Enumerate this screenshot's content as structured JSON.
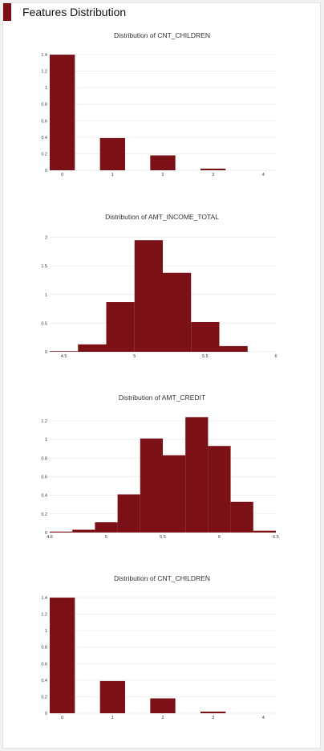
{
  "header": {
    "title": "Features Distribution",
    "accent_color": "#7b1116"
  },
  "bar_color": "#7b1116",
  "chart_data": [
    {
      "type": "bar",
      "title": "Distribution of CNT_CHILDREN",
      "x_ticks": [
        "0",
        "1",
        "2",
        "3",
        "4"
      ],
      "y_ticks": [
        "0",
        "0.2",
        "0.4",
        "0.6",
        "0.8",
        "1",
        "1.2",
        "1.4"
      ],
      "xlim": [
        -0.25,
        4.25
      ],
      "ylim": [
        0,
        1.42
      ],
      "bar_width": 0.5,
      "x": [
        0,
        1,
        2,
        3
      ],
      "values": [
        1.4,
        0.39,
        0.18,
        0.02
      ],
      "grid": true
    },
    {
      "type": "bar",
      "title": "Distribution of AMT_INCOME_TOTAL",
      "x_ticks": [
        "4.5",
        "5",
        "5.5",
        "6"
      ],
      "x_tick_values": [
        4.5,
        5,
        5.5,
        6
      ],
      "y_ticks": [
        "0",
        "0.5",
        "1",
        "1.5",
        "2"
      ],
      "y_tick_values": [
        0,
        0.5,
        1,
        1.5,
        2
      ],
      "xlim": [
        4.4,
        6.0
      ],
      "ylim": [
        0,
        2.05
      ],
      "bar_width": 0.2,
      "x": [
        4.5,
        4.7,
        4.9,
        5.1,
        5.3,
        5.5,
        5.7
      ],
      "values": [
        0.01,
        0.13,
        0.87,
        1.95,
        1.38,
        0.52,
        0.1
      ],
      "grid": true
    },
    {
      "type": "bar",
      "title": "Distribution of AMT_CREDIT",
      "x_ticks": [
        "4.5",
        "5",
        "5.5",
        "6",
        "6.5"
      ],
      "x_tick_values": [
        4.5,
        5,
        5.5,
        6,
        6.5
      ],
      "y_ticks": [
        "0",
        "0.2",
        "0.4",
        "0.6",
        "0.8",
        "1",
        "1.2"
      ],
      "y_tick_values": [
        0,
        0.2,
        0.4,
        0.6,
        0.8,
        1,
        1.2
      ],
      "xlim": [
        4.5,
        6.5
      ],
      "ylim": [
        0,
        1.26
      ],
      "bar_width": 0.2,
      "x": [
        4.6,
        4.8,
        5.0,
        5.2,
        5.4,
        5.6,
        5.8,
        6.0,
        6.2,
        6.4
      ],
      "values": [
        0.01,
        0.03,
        0.11,
        0.41,
        1.01,
        0.83,
        1.24,
        0.93,
        0.33,
        0.02
      ],
      "grid": true
    },
    {
      "type": "bar",
      "title": "Distribution of CNT_CHILDREN",
      "x_ticks": [
        "0",
        "1",
        "2",
        "3",
        "4"
      ],
      "y_ticks": [
        "0",
        "0.2",
        "0.4",
        "0.6",
        "0.8",
        "1",
        "1.2",
        "1.4"
      ],
      "xlim": [
        -0.25,
        4.25
      ],
      "ylim": [
        0,
        1.42
      ],
      "bar_width": 0.5,
      "x": [
        0,
        1,
        2,
        3
      ],
      "values": [
        1.4,
        0.39,
        0.18,
        0.02
      ],
      "grid": true
    }
  ]
}
